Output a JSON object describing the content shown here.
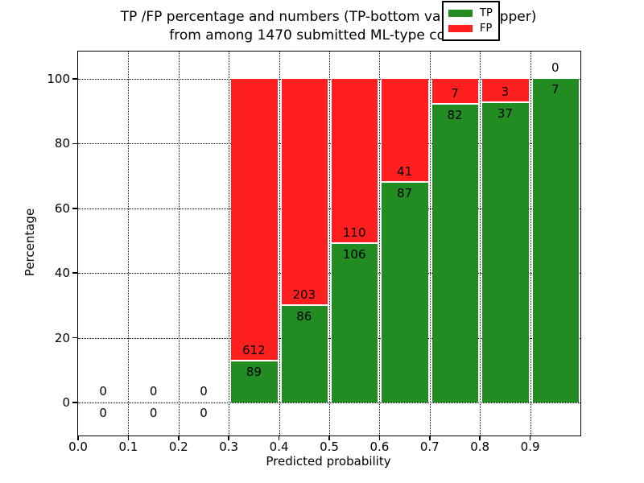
{
  "chart_data": {
    "type": "bar",
    "stacked": true,
    "title": "TP /FP percentage and numbers (TP-bottom value, FP-upper)\nfrom among 1470 submitted ML-type contacts",
    "title_line1": "TP /FP percentage and numbers (TP-bottom value, FP-upper)",
    "title_line2": "from among 1470 submitted ML-type contacts",
    "xlabel": "Predicted probability",
    "ylabel": "Percentage",
    "total_contacts": 1470,
    "x_ticks": [
      "0.0",
      "0.1",
      "0.2",
      "0.3",
      "0.4",
      "0.5",
      "0.6",
      "0.7",
      "0.8",
      "0.9"
    ],
    "y_ticks": [
      0,
      20,
      40,
      60,
      80,
      100
    ],
    "xlim": [
      0.0,
      1.0
    ],
    "ylim": [
      0,
      100
    ],
    "grid": {
      "style": "dotted",
      "color": "#000000",
      "on": true
    },
    "legend": {
      "position": "upper-right",
      "entries": [
        {
          "label": "TP",
          "color": "#228b22"
        },
        {
          "label": "FP",
          "color": "#ff1f1f"
        }
      ]
    },
    "colors": {
      "tp": "#228b22",
      "fp": "#ff1f1f",
      "segment_divider": "#ffffff",
      "background": "#ffffff",
      "text": "#000000"
    },
    "bins": [
      {
        "range": "0.0-0.1",
        "x_start": 0.0,
        "tp": 0,
        "fp": 0,
        "tp_pct": null,
        "fp_pct": null
      },
      {
        "range": "0.1-0.2",
        "x_start": 0.1,
        "tp": 0,
        "fp": 0,
        "tp_pct": null,
        "fp_pct": null
      },
      {
        "range": "0.2-0.3",
        "x_start": 0.2,
        "tp": 0,
        "fp": 0,
        "tp_pct": null,
        "fp_pct": null
      },
      {
        "range": "0.3-0.4",
        "x_start": 0.3,
        "tp": 89,
        "fp": 612,
        "tp_pct": 12.7,
        "fp_pct": 87.3
      },
      {
        "range": "0.4-0.5",
        "x_start": 0.4,
        "tp": 86,
        "fp": 203,
        "tp_pct": 29.76,
        "fp_pct": 70.24
      },
      {
        "range": "0.5-0.6",
        "x_start": 0.5,
        "tp": 106,
        "fp": 110,
        "tp_pct": 49.07,
        "fp_pct": 50.93
      },
      {
        "range": "0.6-0.7",
        "x_start": 0.6,
        "tp": 87,
        "fp": 41,
        "tp_pct": 67.97,
        "fp_pct": 32.03
      },
      {
        "range": "0.7-0.8",
        "x_start": 0.7,
        "tp": 82,
        "fp": 7,
        "tp_pct": 92.13,
        "fp_pct": 7.87
      },
      {
        "range": "0.8-0.9",
        "x_start": 0.8,
        "tp": 37,
        "fp": 3,
        "tp_pct": 92.5,
        "fp_pct": 7.5
      },
      {
        "range": "0.9-1.0",
        "x_start": 0.9,
        "tp": 7,
        "fp": 0,
        "tp_pct": 100.0,
        "fp_pct": 0.0
      }
    ]
  }
}
